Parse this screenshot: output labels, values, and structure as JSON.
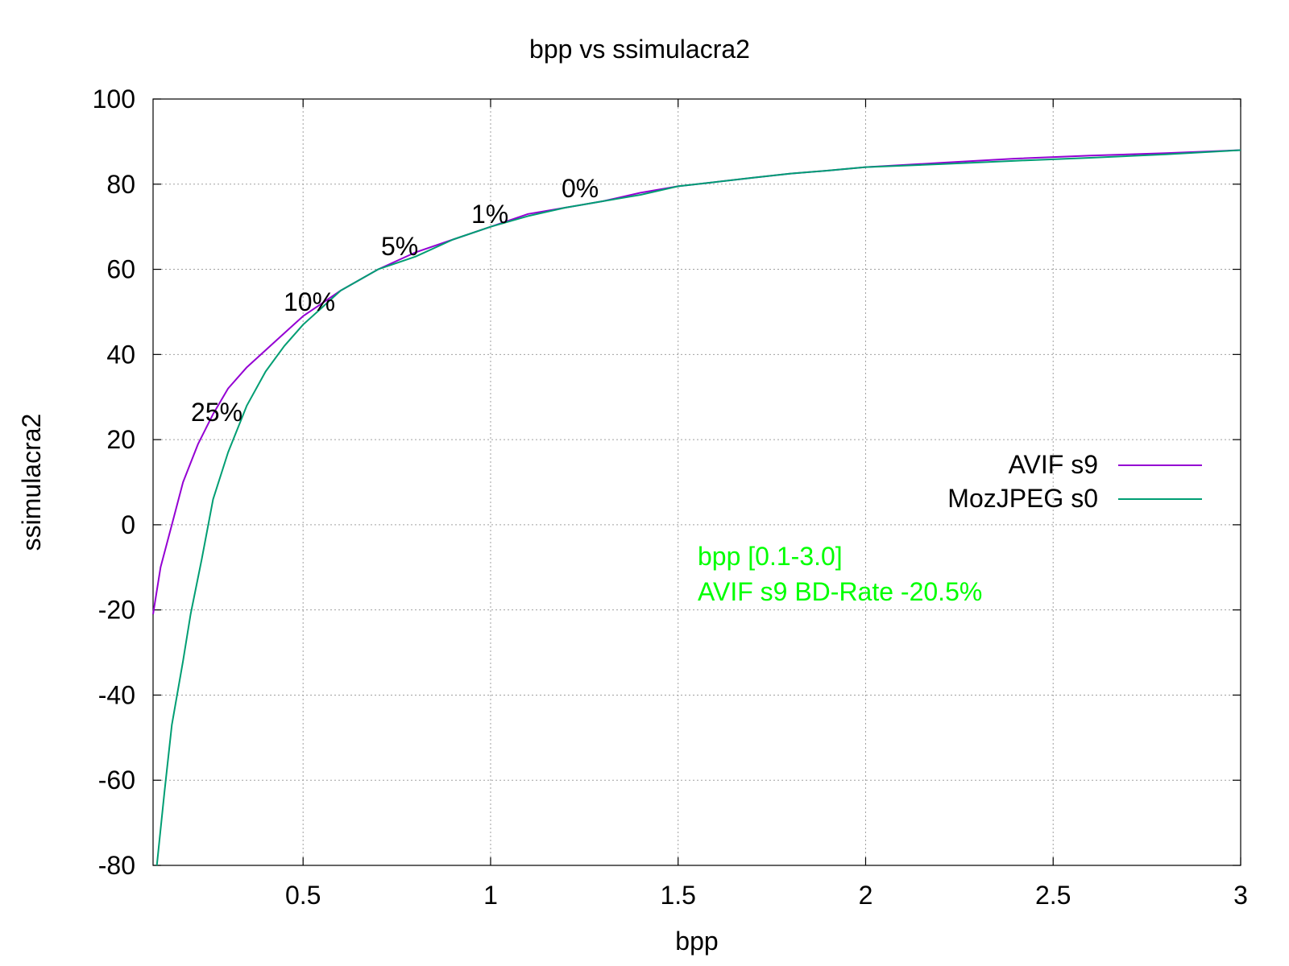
{
  "chart_data": {
    "type": "line",
    "title": "bpp vs ssimulacra2",
    "xlabel": "bpp",
    "ylabel": "ssimulacra2",
    "xlim": [
      0.1,
      3.0
    ],
    "ylim": [
      -80,
      100
    ],
    "x_ticks": [
      "0.5",
      "1",
      "1.5",
      "2",
      "2.5",
      "3"
    ],
    "y_ticks": [
      "100",
      "80",
      "60",
      "40",
      "20",
      "0",
      "-20",
      "-40",
      "-60",
      "-80"
    ],
    "grid": true,
    "legend_position": "right",
    "series": [
      {
        "name": "AVIF s9",
        "color": "#9400d3",
        "x": [
          0.1,
          0.12,
          0.15,
          0.18,
          0.22,
          0.26,
          0.3,
          0.35,
          0.4,
          0.45,
          0.5,
          0.55,
          0.6,
          0.7,
          0.8,
          0.9,
          1.0,
          1.1,
          1.2,
          1.3,
          1.4,
          1.5,
          1.6,
          1.7,
          1.8,
          1.9,
          2.0,
          2.2,
          2.4,
          2.6,
          2.8,
          3.0
        ],
        "y": [
          -21,
          -10,
          0,
          10,
          19,
          26,
          32,
          37,
          41,
          45,
          49,
          52,
          55,
          60,
          64,
          67,
          70,
          73,
          74.5,
          76,
          78,
          79.5,
          80.5,
          81.5,
          82.5,
          83.2,
          84,
          85,
          86,
          86.7,
          87.3,
          88
        ]
      },
      {
        "name": "MozJPEG s0",
        "color": "#009e73",
        "x": [
          0.11,
          0.13,
          0.15,
          0.18,
          0.2,
          0.23,
          0.26,
          0.3,
          0.35,
          0.4,
          0.45,
          0.5,
          0.55,
          0.6,
          0.7,
          0.8,
          0.9,
          1.0,
          1.1,
          1.2,
          1.3,
          1.4,
          1.5,
          1.6,
          1.7,
          1.8,
          1.9,
          2.0,
          2.2,
          2.4,
          2.6,
          2.8,
          3.0
        ],
        "y": [
          -80,
          -63,
          -47,
          -32,
          -21,
          -8,
          6,
          17,
          28,
          36,
          42,
          47,
          51,
          55,
          60,
          63,
          67,
          70,
          72.5,
          74.5,
          76,
          77.5,
          79.5,
          80.5,
          81.5,
          82.5,
          83.2,
          84,
          84.7,
          85.5,
          86.2,
          87,
          88
        ]
      }
    ],
    "annotations": [
      {
        "text": "25%",
        "x": 0.4,
        "y": 26
      },
      {
        "text": "10%",
        "x": 0.68,
        "y": 53
      },
      {
        "text": "5%",
        "x": 0.84,
        "y": 66.5
      },
      {
        "text": "1%",
        "x": 1.05,
        "y": 74
      },
      {
        "text": "0%",
        "x": 1.31,
        "y": 80.5
      }
    ],
    "notes": [
      "bpp [0.1-3.0]",
      "AVIF s9 BD-Rate -20.5%"
    ],
    "note_color": "#00ff00"
  }
}
